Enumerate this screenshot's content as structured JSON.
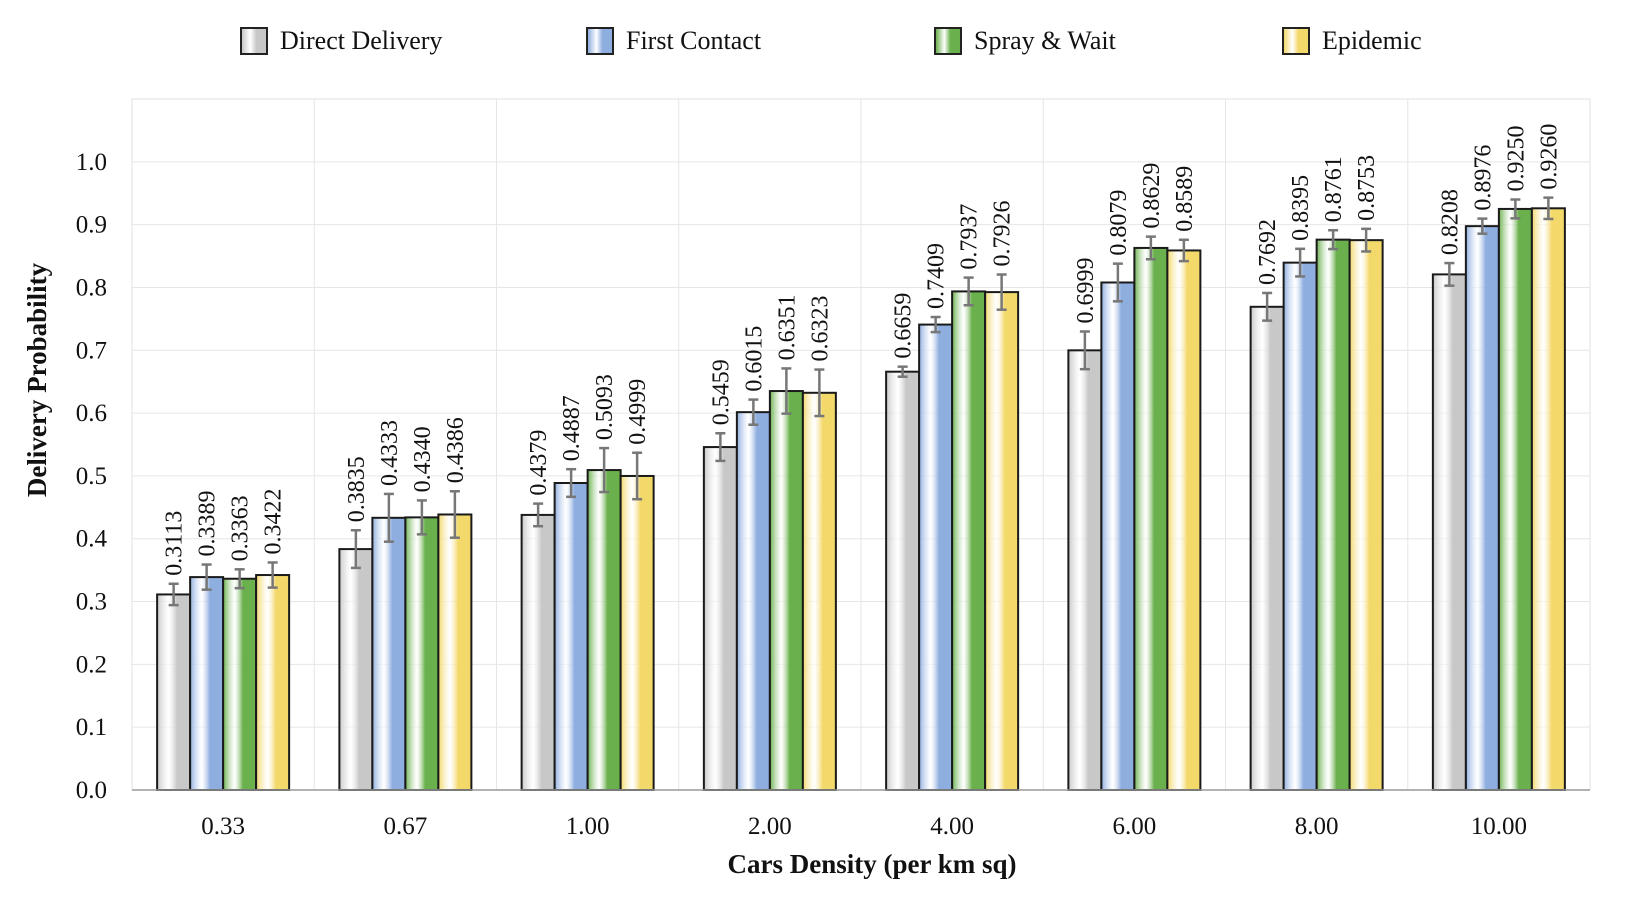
{
  "chart_data": {
    "type": "bar",
    "xlabel": "Cars Density (per km sq)",
    "ylabel": "Delivery Probability",
    "ylim": [
      0,
      1.1
    ],
    "yticks": [
      "0.0",
      "0.1",
      "0.2",
      "0.3",
      "0.4",
      "0.5",
      "0.6",
      "0.7",
      "0.8",
      "0.9",
      "1.0"
    ],
    "categories": [
      "0.33",
      "0.67",
      "1.00",
      "2.00",
      "4.00",
      "6.00",
      "8.00",
      "10.00"
    ],
    "grid": true,
    "legend_position": "top",
    "series": [
      {
        "name": "Direct Delivery",
        "color": "#c8c8c8",
        "values": [
          0.3113,
          0.3835,
          0.4379,
          0.5459,
          0.6659,
          0.6999,
          0.7692,
          0.8208
        ],
        "labels": [
          "0.3113",
          "0.3835",
          "0.4379",
          "0.5459",
          "0.6659",
          "0.6999",
          "0.7692",
          "0.8208"
        ],
        "errors": [
          0.017,
          0.03,
          0.018,
          0.022,
          0.008,
          0.03,
          0.022,
          0.018
        ]
      },
      {
        "name": "First Contact",
        "color": "#8faee0",
        "values": [
          0.3389,
          0.4333,
          0.4887,
          0.6015,
          0.7409,
          0.8079,
          0.8395,
          0.8976
        ],
        "labels": [
          "0.3389",
          "0.4333",
          "0.4887",
          "0.6015",
          "0.7409",
          "0.8079",
          "0.8395",
          "0.8976"
        ],
        "errors": [
          0.02,
          0.038,
          0.022,
          0.02,
          0.012,
          0.03,
          0.022,
          0.012
        ]
      },
      {
        "name": "Spray & Wait",
        "color": "#6ab04c",
        "values": [
          0.3363,
          0.434,
          0.5093,
          0.6351,
          0.7937,
          0.8629,
          0.8761,
          0.925
        ],
        "labels": [
          "0.3363",
          "0.4340",
          "0.5093",
          "0.6351",
          "0.7937",
          "0.8629",
          "0.8761",
          "0.9250"
        ],
        "errors": [
          0.015,
          0.027,
          0.035,
          0.036,
          0.022,
          0.018,
          0.015,
          0.015
        ]
      },
      {
        "name": "Epidemic",
        "color": "#f3d86a",
        "values": [
          0.3422,
          0.4386,
          0.4999,
          0.6323,
          0.7926,
          0.8589,
          0.8753,
          0.926
        ],
        "labels": [
          "0.3422",
          "0.4386",
          "0.4999",
          "0.6323",
          "0.7926",
          "0.8589",
          "0.8753",
          "0.9260"
        ],
        "errors": [
          0.02,
          0.037,
          0.037,
          0.037,
          0.028,
          0.017,
          0.018,
          0.017
        ]
      }
    ]
  }
}
